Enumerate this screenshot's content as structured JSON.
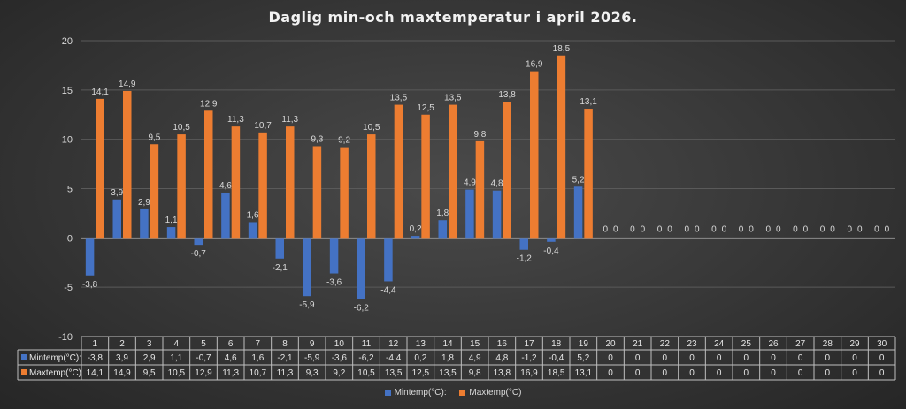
{
  "chart_data": {
    "type": "bar",
    "title": "Daglig min-och maxtemperatur i april 2026.",
    "categories": [
      "1",
      "2",
      "3",
      "4",
      "5",
      "6",
      "7",
      "8",
      "9",
      "10",
      "11",
      "12",
      "13",
      "14",
      "15",
      "16",
      "17",
      "18",
      "19",
      "20",
      "21",
      "22",
      "23",
      "24",
      "25",
      "26",
      "27",
      "28",
      "29",
      "30"
    ],
    "ylim": [
      -10,
      20
    ],
    "yticks": [
      -10,
      -5,
      0,
      5,
      10,
      15,
      20
    ],
    "grid": true,
    "legend_position": "bottom",
    "data_table": true,
    "series": [
      {
        "name": "Mintemp(°C):",
        "table_label": "Mintemp(°C):",
        "color": "#4472c4",
        "values": [
          -3.8,
          3.9,
          2.9,
          1.1,
          -0.7,
          4.6,
          1.6,
          -2.1,
          -5.9,
          -3.6,
          -6.2,
          -4.4,
          0.2,
          1.8,
          4.9,
          4.8,
          -1.2,
          -0.4,
          5.2,
          0,
          0,
          0,
          0,
          0,
          0,
          0,
          0,
          0,
          0,
          0
        ]
      },
      {
        "name": "Maxtemp(°C)",
        "table_label": "Maxtemp(°C)",
        "color": "#ed7d31",
        "values": [
          14.1,
          14.9,
          9.5,
          10.5,
          12.9,
          11.3,
          10.7,
          11.3,
          9.3,
          9.2,
          10.5,
          13.5,
          12.5,
          13.5,
          9.8,
          13.8,
          16.9,
          18.5,
          13.1,
          0,
          0,
          0,
          0,
          0,
          0,
          0,
          0,
          0,
          0,
          0
        ]
      }
    ]
  }
}
